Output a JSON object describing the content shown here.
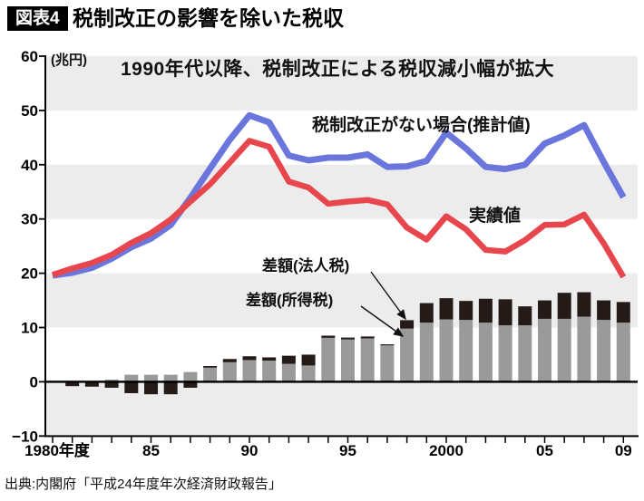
{
  "header": {
    "tag": "図表4",
    "title": "税制改正の影響を除いた税収"
  },
  "chart": {
    "unit_label": "(兆円)",
    "annotation": "1990年代以降、税制改正による税収減小幅が拡大",
    "series_labels": {
      "estimated": "税制改正がない場合(推計値)",
      "actual": "実績値",
      "diff_corporate": "差額(法人税)",
      "diff_income": "差額(所得税)"
    }
  },
  "source": "出典:内閣府「平成24年度年次経済財政報告」",
  "colors": {
    "estimated_line": "#6b76dd",
    "actual_line": "#e8464d",
    "income_bar": "#9a9a9a",
    "corporate_bar": "#241b18",
    "band": "#ececec",
    "axis": "#000000",
    "arrow": "#111111"
  },
  "chart_data": {
    "type": "line+stacked-bar",
    "title": "税制改正の影響を除いた税収",
    "xlabel": "年度",
    "ylabel": "兆円",
    "ylim": [
      -10,
      60
    ],
    "grid": "banded",
    "bands": [
      [
        50,
        60
      ],
      [
        30,
        40
      ],
      [
        10,
        20
      ],
      [
        -10,
        0
      ]
    ],
    "x": [
      1980,
      1981,
      1982,
      1983,
      1984,
      1985,
      1986,
      1987,
      1988,
      1989,
      1990,
      1991,
      1992,
      1993,
      1994,
      1995,
      1996,
      1997,
      1998,
      1999,
      2000,
      2001,
      2002,
      2003,
      2004,
      2005,
      2006,
      2007,
      2008,
      2009
    ],
    "series": [
      {
        "name": "税制改正がない場合(推計値)",
        "kind": "line",
        "color_key": "estimated_line",
        "values": [
          19.6,
          20.1,
          21.0,
          22.7,
          24.8,
          26.4,
          28.9,
          33.9,
          39.3,
          44.6,
          49.1,
          47.8,
          41.7,
          40.8,
          41.3,
          41.3,
          41.9,
          39.6,
          39.7,
          40.7,
          45.9,
          43.0,
          39.6,
          39.2,
          40.0,
          43.9,
          45.4,
          47.3,
          40.5,
          34.0
        ]
      },
      {
        "name": "実績値",
        "kind": "line",
        "color_key": "actual_line",
        "values": [
          19.7,
          20.9,
          21.9,
          23.4,
          25.6,
          27.4,
          29.9,
          33.2,
          36.4,
          40.4,
          44.4,
          43.3,
          36.9,
          35.8,
          32.8,
          33.2,
          33.5,
          32.7,
          28.4,
          26.2,
          30.5,
          28.1,
          24.3,
          24.0,
          26.1,
          28.9,
          29.0,
          30.8,
          25.5,
          19.3
        ]
      },
      {
        "name": "差額(所得税)",
        "kind": "bar",
        "color_key": "income_bar",
        "values": [
          0,
          0,
          0,
          0.4,
          1.3,
          1.3,
          1.3,
          1.8,
          2.6,
          3.6,
          4.0,
          3.9,
          3.3,
          3.0,
          8.1,
          7.8,
          8.0,
          6.7,
          9.8,
          10.9,
          11.5,
          11.4,
          10.9,
          10.4,
          10.4,
          11.6,
          11.6,
          12.0,
          11.4,
          10.9
        ]
      },
      {
        "name": "差額(法人税)",
        "kind": "bar",
        "color_key": "corporate_bar",
        "values": [
          0,
          -0.8,
          -0.9,
          -1.1,
          -2.1,
          -2.3,
          -2.3,
          -1.1,
          0.3,
          0.6,
          0.7,
          0.6,
          1.5,
          2.0,
          0.4,
          0.35,
          0.35,
          0.2,
          1.55,
          3.6,
          3.9,
          3.5,
          4.4,
          4.8,
          3.5,
          3.4,
          4.8,
          4.5,
          3.6,
          3.8
        ]
      }
    ],
    "y_ticks": [
      {
        "v": 60,
        "label": "60"
      },
      {
        "v": 50,
        "label": "50"
      },
      {
        "v": 40,
        "label": "40"
      },
      {
        "v": 30,
        "label": "30"
      },
      {
        "v": 20,
        "label": "20"
      },
      {
        "v": 10,
        "label": "10"
      },
      {
        "v": 0,
        "label": "0"
      },
      {
        "v": -10,
        "label": "−10"
      }
    ],
    "x_ticks_labeled": [
      {
        "year": 1980,
        "label": "1980年度"
      },
      {
        "year": 1985,
        "label": "85"
      },
      {
        "year": 1990,
        "label": "90"
      },
      {
        "year": 1995,
        "label": "95"
      },
      {
        "year": 2000,
        "label": "2000"
      },
      {
        "year": 2005,
        "label": "05"
      },
      {
        "year": 2009,
        "label": "09"
      }
    ],
    "legend_position": "inline-annotations"
  }
}
